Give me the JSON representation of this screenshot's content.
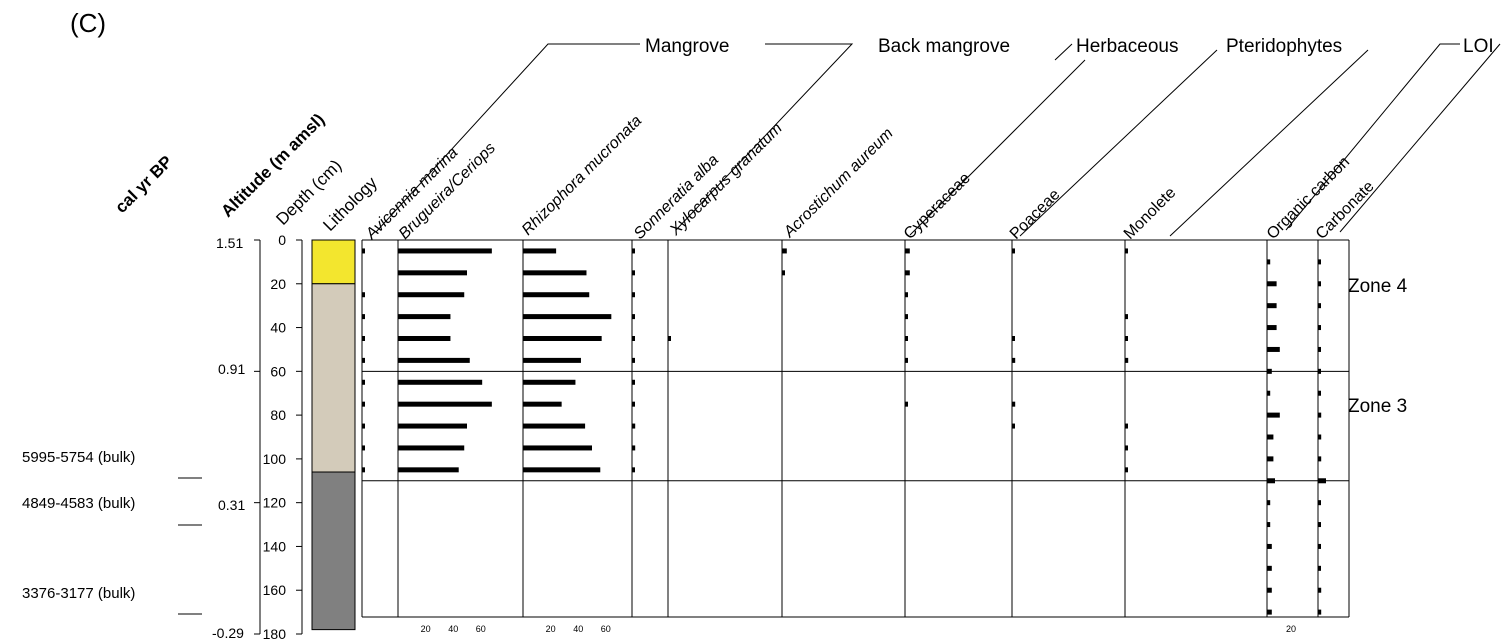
{
  "panel_label": "(C)",
  "colors": {
    "sand": "#f3e62e",
    "mud": "#d3cbba",
    "dark": "#808080",
    "line": "#000000"
  },
  "group_labels": [
    "Mangrove",
    "Back mangrove",
    "Herbaceous",
    "Pteridophytes",
    "LOI"
  ],
  "axis_titles": {
    "cal": "cal yr BP",
    "altitude": "Altitude (m amsl)",
    "depth": "Depth (cm)",
    "lithology": "Lithology"
  },
  "altitude_ticks": [
    "1.51",
    "0.91",
    "0.31",
    "-0.29"
  ],
  "age_labels": [
    "5995-5754 (bulk)",
    "4849-4583 (bulk)",
    "3376-3177 (bulk)"
  ],
  "zone_labels": [
    "Zone 4",
    "Zone 3"
  ],
  "taxa": [
    {
      "label": "Avicennia marina",
      "italic": true
    },
    {
      "label": "Brugueira/Ceriops",
      "italic": true
    },
    {
      "label": "Rhizophora mucronata",
      "italic": true
    },
    {
      "label": "Sonneratia alba",
      "italic": true
    },
    {
      "label": "Xylocarpus granatum",
      "italic": true
    },
    {
      "label": "Acrostichum aureum",
      "italic": true
    },
    {
      "label": "Cyperaceae",
      "italic": false
    },
    {
      "label": "Poaceae",
      "italic": false
    },
    {
      "label": "Monolete",
      "italic": false
    },
    {
      "label": "Organic carbon",
      "italic": false
    },
    {
      "label": "Carbonate",
      "italic": false
    }
  ],
  "chart_data": {
    "type": "bar",
    "title": "",
    "ylabel": "Depth (cm)",
    "ylim": [
      0,
      180
    ],
    "depth_ticks": [
      0,
      20,
      40,
      60,
      80,
      100,
      120,
      140,
      160,
      180
    ],
    "lithology": [
      {
        "from": 0,
        "to": 20,
        "color": "#f3e62e"
      },
      {
        "from": 20,
        "to": 106,
        "color": "#d3cbba"
      },
      {
        "from": 106,
        "to": 178,
        "color": "#808080"
      }
    ],
    "zone_boundaries": [
      60,
      110
    ],
    "pollen_depths": [
      5,
      15,
      25,
      35,
      45,
      55,
      65,
      75,
      85,
      95,
      105
    ],
    "series": [
      {
        "name": "Avicennia marina",
        "values": [
          1,
          0,
          2,
          2,
          2,
          2,
          2,
          2,
          2,
          2,
          2
        ]
      },
      {
        "name": "Brugueira/Ceriops",
        "values": [
          68,
          50,
          48,
          38,
          38,
          52,
          61,
          68,
          50,
          48,
          44
        ]
      },
      {
        "name": "Rhizophora mucronata",
        "values": [
          24,
          46,
          48,
          64,
          57,
          42,
          38,
          28,
          45,
          50,
          56
        ]
      },
      {
        "name": "Sonneratia alba",
        "values": [
          1,
          1,
          1,
          1,
          1,
          1,
          1,
          1,
          2,
          2,
          1
        ]
      },
      {
        "name": "Xylocarpus granatum",
        "values": [
          0,
          0,
          0,
          0,
          1,
          0,
          0,
          0,
          0,
          0,
          0
        ]
      },
      {
        "name": "Acrostichum aureum",
        "values": [
          3,
          1,
          0,
          0,
          0,
          0,
          0,
          0,
          0,
          0,
          0
        ]
      },
      {
        "name": "Cyperaceae",
        "values": [
          3,
          3,
          1,
          1,
          1,
          1,
          0,
          1,
          0,
          0,
          0
        ]
      },
      {
        "name": "Poaceae",
        "values": [
          1,
          0,
          0,
          0,
          1,
          2,
          0,
          2,
          1,
          0,
          0
        ]
      },
      {
        "name": "Monolete",
        "values": [
          1,
          0,
          0,
          1,
          1,
          2,
          0,
          0,
          1,
          1,
          1
        ]
      }
    ],
    "loi_depths": [
      10,
      20,
      30,
      40,
      50,
      60,
      70,
      80,
      90,
      100,
      110,
      120,
      130,
      140,
      150,
      160,
      170
    ],
    "loi_series": [
      {
        "name": "Organic carbon",
        "values": [
          2,
          6,
          6,
          6,
          8,
          3,
          2,
          8,
          4,
          4,
          5,
          2,
          2,
          3,
          3,
          3,
          3
        ]
      },
      {
        "name": "Carbonate",
        "values": [
          1,
          1,
          1,
          1,
          1,
          1,
          1,
          2,
          2,
          2,
          5,
          1,
          1,
          1,
          1,
          2,
          2
        ]
      }
    ],
    "x_tick_labels": {
      "brugueira": [
        "20",
        "40",
        "60"
      ],
      "rhizophora": [
        "20",
        "40",
        "60"
      ],
      "loi": [
        "20"
      ]
    }
  }
}
